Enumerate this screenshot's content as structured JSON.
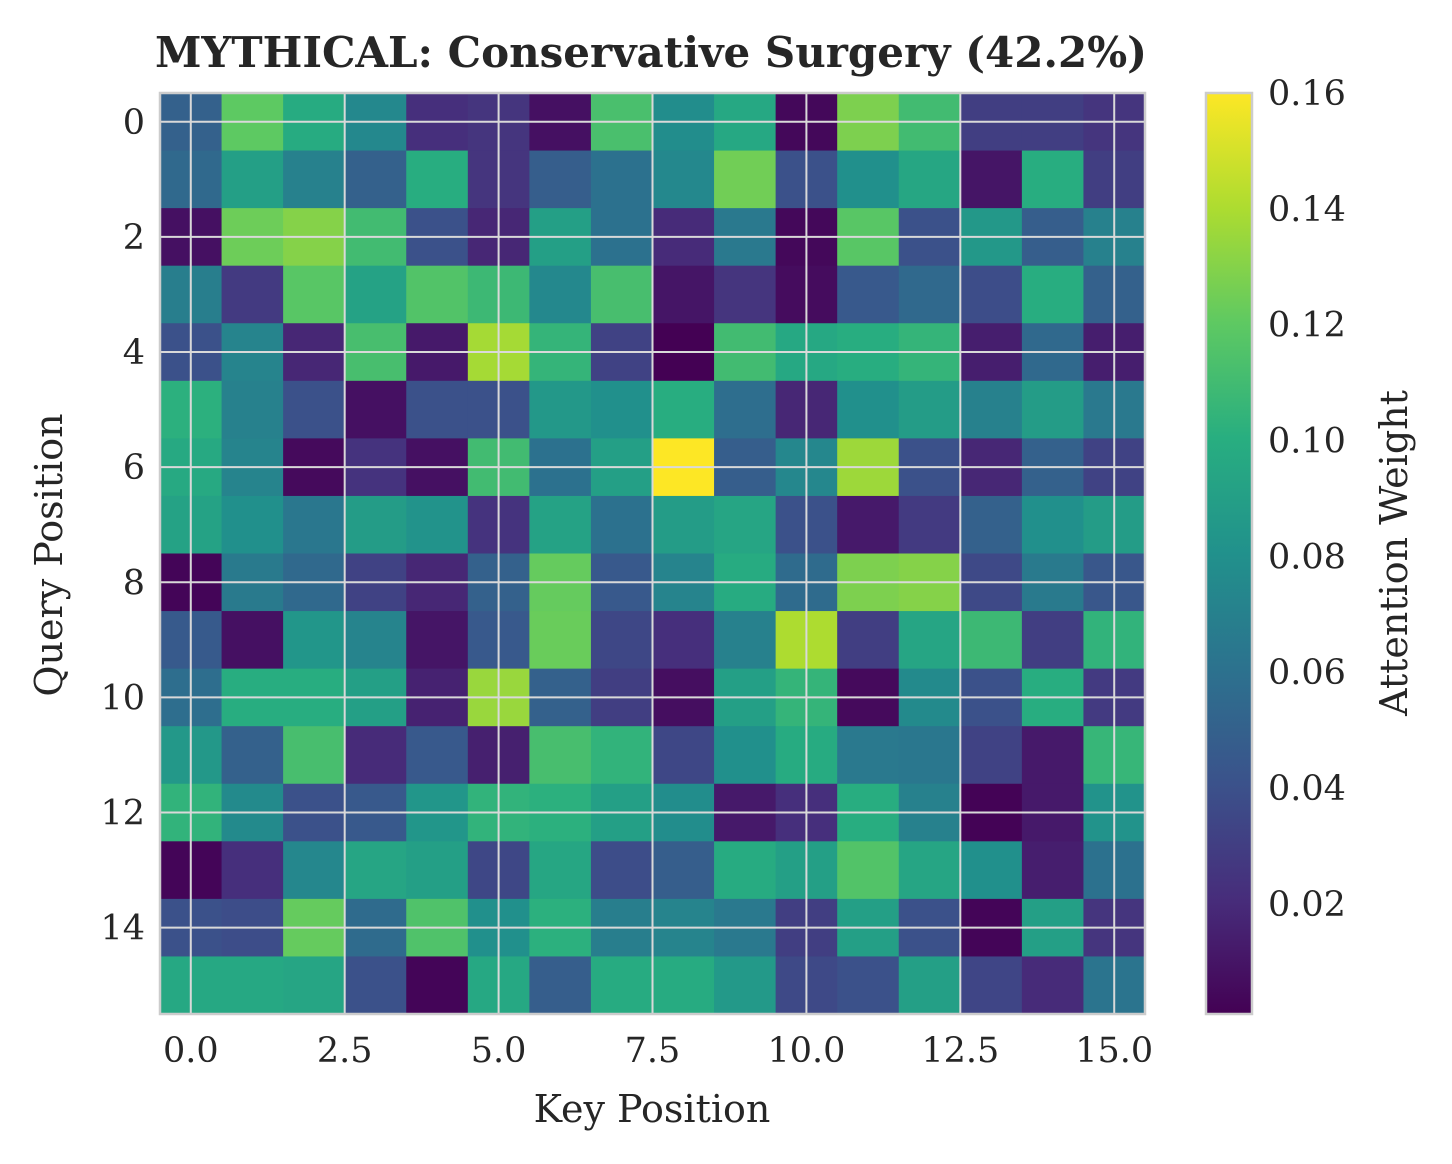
{
  "chart_data": {
    "type": "heatmap",
    "title": "MYTHICAL: Conservative Surgery (42.2%)",
    "xlabel": "Key Position",
    "ylabel": "Query Position",
    "colorbar_label": "Attention Weight",
    "colormap": "viridis",
    "xlim": [
      -0.5,
      15.5
    ],
    "ylim": [
      15.5,
      -0.5
    ],
    "x_ticks": [
      0.0,
      2.5,
      5.0,
      7.5,
      10.0,
      12.5,
      15.0
    ],
    "x_tick_labels": [
      "0.0",
      "2.5",
      "5.0",
      "7.5",
      "10.0",
      "12.5",
      "15.0"
    ],
    "y_ticks": [
      0,
      2,
      4,
      6,
      8,
      10,
      12,
      14
    ],
    "y_tick_labels": [
      "0",
      "2",
      "4",
      "6",
      "8",
      "10",
      "12",
      "14"
    ],
    "grid": true,
    "color_range": [
      0.001,
      0.16
    ],
    "colorbar_ticks": [
      0.02,
      0.04,
      0.06,
      0.08,
      0.1,
      0.12,
      0.14,
      0.16
    ],
    "colorbar_tick_labels": [
      "0.02",
      "0.04",
      "0.06",
      "0.08",
      "0.10",
      "0.12",
      "0.14",
      "0.16"
    ],
    "values": [
      [
        0.05,
        0.12,
        0.098,
        0.075,
        0.022,
        0.025,
        0.008,
        0.113,
        0.078,
        0.096,
        0.004,
        0.128,
        0.11,
        0.03,
        0.03,
        0.025
      ],
      [
        0.055,
        0.09,
        0.07,
        0.05,
        0.1,
        0.025,
        0.048,
        0.06,
        0.075,
        0.125,
        0.04,
        0.08,
        0.095,
        0.01,
        0.1,
        0.03
      ],
      [
        0.008,
        0.124,
        0.13,
        0.11,
        0.04,
        0.018,
        0.09,
        0.06,
        0.02,
        0.065,
        0.004,
        0.118,
        0.04,
        0.085,
        0.048,
        0.07
      ],
      [
        0.068,
        0.028,
        0.118,
        0.092,
        0.116,
        0.108,
        0.075,
        0.112,
        0.01,
        0.025,
        0.006,
        0.045,
        0.055,
        0.038,
        0.1,
        0.05
      ],
      [
        0.04,
        0.072,
        0.018,
        0.112,
        0.012,
        0.138,
        0.105,
        0.032,
        0.001,
        0.11,
        0.096,
        0.1,
        0.105,
        0.014,
        0.055,
        0.014
      ],
      [
        0.102,
        0.07,
        0.04,
        0.008,
        0.04,
        0.04,
        0.085,
        0.08,
        0.1,
        0.058,
        0.018,
        0.08,
        0.088,
        0.07,
        0.088,
        0.065
      ],
      [
        0.097,
        0.072,
        0.005,
        0.024,
        0.008,
        0.11,
        0.06,
        0.09,
        0.16,
        0.048,
        0.074,
        0.136,
        0.04,
        0.018,
        0.05,
        0.032
      ],
      [
        0.092,
        0.08,
        0.064,
        0.088,
        0.082,
        0.024,
        0.092,
        0.06,
        0.088,
        0.094,
        0.04,
        0.012,
        0.028,
        0.05,
        0.08,
        0.088
      ],
      [
        0.003,
        0.066,
        0.055,
        0.032,
        0.018,
        0.05,
        0.122,
        0.045,
        0.072,
        0.098,
        0.056,
        0.128,
        0.13,
        0.036,
        0.066,
        0.044
      ],
      [
        0.046,
        0.008,
        0.084,
        0.072,
        0.01,
        0.045,
        0.123,
        0.035,
        0.022,
        0.07,
        0.14,
        0.03,
        0.094,
        0.108,
        0.03,
        0.104
      ],
      [
        0.058,
        0.1,
        0.1,
        0.09,
        0.016,
        0.135,
        0.05,
        0.03,
        0.007,
        0.09,
        0.105,
        0.005,
        0.076,
        0.04,
        0.1,
        0.028
      ],
      [
        0.085,
        0.05,
        0.112,
        0.02,
        0.045,
        0.015,
        0.112,
        0.104,
        0.035,
        0.08,
        0.098,
        0.065,
        0.064,
        0.032,
        0.012,
        0.106
      ],
      [
        0.104,
        0.076,
        0.04,
        0.045,
        0.084,
        0.104,
        0.102,
        0.09,
        0.078,
        0.012,
        0.022,
        0.1,
        0.07,
        0.002,
        0.012,
        0.082
      ],
      [
        0.003,
        0.022,
        0.074,
        0.094,
        0.09,
        0.035,
        0.095,
        0.038,
        0.048,
        0.098,
        0.09,
        0.116,
        0.094,
        0.08,
        0.014,
        0.06
      ],
      [
        0.04,
        0.038,
        0.122,
        0.056,
        0.115,
        0.08,
        0.102,
        0.068,
        0.072,
        0.065,
        0.03,
        0.09,
        0.04,
        0.003,
        0.09,
        0.025
      ],
      [
        0.096,
        0.096,
        0.094,
        0.04,
        0.003,
        0.096,
        0.048,
        0.098,
        0.098,
        0.086,
        0.036,
        0.04,
        0.09,
        0.034,
        0.02,
        0.062
      ]
    ]
  }
}
